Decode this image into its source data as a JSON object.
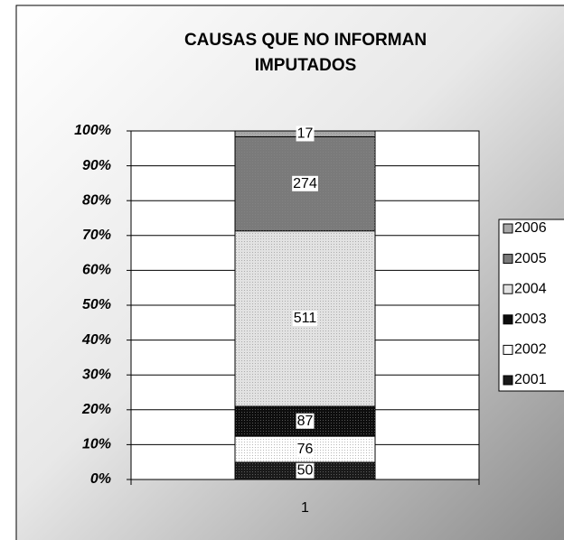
{
  "chart_data": {
    "type": "stacked100",
    "title": [
      "CAUSAS QUE NO INFORMAN",
      "IMPUTADOS"
    ],
    "categories": [
      "1"
    ],
    "series": [
      {
        "name": "2001",
        "color": "#1a1a1a",
        "values": [
          50
        ]
      },
      {
        "name": "2002",
        "color": "#ffffff",
        "values": [
          76
        ]
      },
      {
        "name": "2003",
        "color": "#0d0d0d",
        "values": [
          87
        ]
      },
      {
        "name": "2004",
        "color": "#e2e2e2",
        "values": [
          511
        ]
      },
      {
        "name": "2005",
        "color": "#7a7a7a",
        "values": [
          274
        ]
      },
      {
        "name": "2006",
        "color": "#a8a8a8",
        "values": [
          17
        ]
      }
    ],
    "ylim": [
      0,
      100
    ],
    "yticks": [
      {
        "value": 0,
        "label": "0%"
      },
      {
        "value": 10,
        "label": "10%"
      },
      {
        "value": 20,
        "label": "20%"
      },
      {
        "value": 30,
        "label": "30%"
      },
      {
        "value": 40,
        "label": "40%"
      },
      {
        "value": 50,
        "label": "50%"
      },
      {
        "value": 60,
        "label": "60%"
      },
      {
        "value": 70,
        "label": "70%"
      },
      {
        "value": 80,
        "label": "80%"
      },
      {
        "value": 90,
        "label": "90%"
      },
      {
        "value": 100,
        "label": "100%"
      }
    ],
    "grid": true,
    "legend": "right"
  }
}
